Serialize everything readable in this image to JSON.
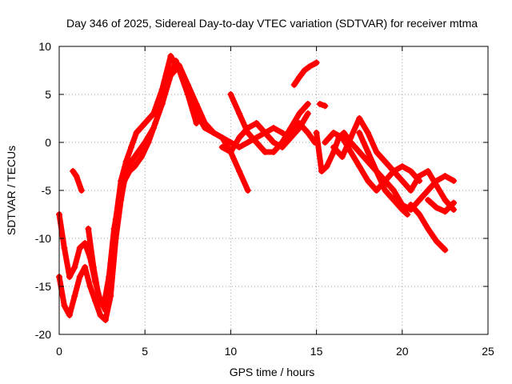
{
  "chart_data": {
    "type": "scatter",
    "title": "Day 346 of 2025, Sidereal Day-to-day VTEC variation (SDTVAR) for receiver mtma",
    "xlabel": "GPS time / hours",
    "ylabel": "SDTVAR / TECUs",
    "xlim": [
      0,
      25
    ],
    "ylim": [
      -20,
      10
    ],
    "xticks": [
      0,
      5,
      10,
      15,
      20,
      25
    ],
    "yticks": [
      -20,
      -15,
      -10,
      -5,
      0,
      5,
      10
    ],
    "grid": true,
    "marker": "plus",
    "color": "#ff0000",
    "series": [
      {
        "name": "satellite trace 1",
        "x": [
          0.0,
          0.3,
          0.6,
          0.9,
          1.2,
          1.5,
          1.8,
          2.1,
          2.4,
          2.7,
          3.0,
          3.3,
          3.6,
          3.9,
          4.2,
          4.5,
          5.0,
          5.5,
          6.0,
          6.5,
          7.0,
          7.5,
          8.0
        ],
        "y": [
          -7.5,
          -11,
          -14,
          -13,
          -11,
          -10.5,
          -12,
          -14.5,
          -16.5,
          -17.5,
          -13,
          -8,
          -4,
          -2,
          -0.5,
          1,
          2,
          3,
          5.5,
          9,
          7.5,
          5,
          2
        ]
      },
      {
        "name": "satellite trace 2",
        "x": [
          0.0,
          0.3,
          0.6,
          0.9,
          1.2,
          1.5,
          1.8,
          2.1,
          2.4,
          2.7,
          3.0,
          3.3,
          3.6,
          3.9,
          4.2,
          4.6,
          5.0,
          5.5,
          6.0,
          6.5,
          7.0,
          7.5,
          8.0,
          8.5,
          9.0,
          9.5,
          10.0,
          10.5,
          11.0
        ],
        "y": [
          -14,
          -17,
          -18,
          -16,
          -14,
          -13,
          -15,
          -16.5,
          -18,
          -18.5,
          -16,
          -10,
          -6,
          -3,
          -2,
          -1,
          0,
          1.5,
          4,
          7,
          8,
          6,
          4,
          2,
          1,
          0.5,
          -1,
          -3,
          -5
        ]
      },
      {
        "name": "satellite trace 3",
        "x": [
          0.8,
          1.0,
          1.3
        ],
        "y": [
          -3,
          -3.5,
          -5
        ]
      },
      {
        "name": "satellite trace 4",
        "x": [
          1.7,
          2.0,
          2.3,
          2.6,
          2.9,
          3.2,
          3.5,
          3.8,
          4.1,
          4.4,
          4.8,
          5.2,
          5.6,
          6.0,
          6.4,
          6.8,
          7.2,
          7.6,
          8.0,
          8.5,
          9.0,
          9.5,
          10.0,
          10.5,
          11.0,
          11.5,
          12.0,
          12.5,
          13.0,
          13.5,
          14.0,
          14.5
        ],
        "y": [
          -9,
          -13,
          -16,
          -17,
          -14,
          -9,
          -6,
          -4,
          -3,
          -2.5,
          -1.5,
          0,
          2,
          4,
          6.5,
          8.5,
          7,
          5,
          3,
          1.5,
          1,
          0.5,
          0,
          -0.5,
          0,
          0.5,
          1,
          1.5,
          1,
          0.5,
          1.5,
          3
        ]
      },
      {
        "name": "satellite trace 5",
        "x": [
          10.0,
          10.5,
          11.0,
          11.5,
          12.0,
          12.5,
          13.0,
          13.5,
          14.0,
          14.5
        ],
        "y": [
          5,
          3,
          1,
          0,
          -1,
          -1,
          0,
          1.5,
          3,
          4
        ]
      },
      {
        "name": "satellite trace 6",
        "x": [
          9.5,
          10.0,
          10.5,
          11.0,
          11.5,
          12.0,
          12.5,
          13.0,
          13.5,
          14.0,
          14.5,
          14.9
        ],
        "y": [
          -0.5,
          -1,
          0.5,
          1.5,
          2,
          1,
          0,
          -0.5,
          0.5,
          2,
          1,
          0
        ]
      },
      {
        "name": "satellite trace 7",
        "x": [
          13.7,
          14.0,
          14.3,
          14.6,
          14.9,
          15.0
        ],
        "y": [
          6,
          6.8,
          7.5,
          7.9,
          8.2,
          8.3
        ]
      },
      {
        "name": "satellite trace 8",
        "x": [
          15.2,
          15.5
        ],
        "y": [
          4,
          3.8
        ]
      },
      {
        "name": "satellite trace 9",
        "x": [
          15.0,
          15.3,
          15.6,
          16.0,
          16.3,
          16.6,
          17.0,
          17.5,
          18.0,
          18.5,
          19.0,
          19.5,
          20.0,
          20.5,
          21.0,
          21.5,
          22.0,
          22.5,
          23.0
        ],
        "y": [
          1,
          -3,
          -2.5,
          -1,
          0.5,
          1,
          0,
          -1,
          -2,
          -3,
          -4,
          -5,
          -6.5,
          -7,
          -6,
          -5,
          -4,
          -3.5,
          -4
        ]
      },
      {
        "name": "satellite trace 10",
        "x": [
          15.5,
          16.0,
          16.5,
          17.0,
          17.5,
          18.0,
          18.5,
          19.0,
          19.5,
          20.0,
          20.5,
          21.0
        ],
        "y": [
          0,
          1,
          0.5,
          -1,
          -2.5,
          -4,
          -5,
          -4,
          -3,
          -2.5,
          -3,
          -4
        ]
      },
      {
        "name": "satellite trace 11",
        "x": [
          16.0,
          16.5,
          17.0,
          17.5,
          18.0,
          18.5,
          19.0,
          19.5,
          20.0,
          20.5,
          21.0,
          21.5,
          22.0,
          22.5,
          23.0
        ],
        "y": [
          -0.5,
          -1.5,
          0.5,
          2.5,
          1,
          -1,
          -2,
          -3,
          -4,
          -5,
          -3.5,
          -3,
          -4.5,
          -6,
          -7
        ]
      },
      {
        "name": "satellite trace 12",
        "x": [
          17.5,
          18.0,
          18.5,
          19.0,
          19.5,
          20.0,
          20.3
        ],
        "y": [
          1,
          -1,
          -3,
          -5,
          -6,
          -7,
          -7.5
        ]
      },
      {
        "name": "satellite trace 13",
        "x": [
          20.5,
          21.0,
          21.5,
          22.0,
          22.5
        ],
        "y": [
          -6.5,
          -7.5,
          -9,
          -10.3,
          -11.2
        ]
      },
      {
        "name": "satellite trace 14",
        "x": [
          21.5,
          22.0,
          22.5,
          23.0
        ],
        "y": [
          -6,
          -6.8,
          -7.2,
          -6.3
        ]
      }
    ]
  }
}
